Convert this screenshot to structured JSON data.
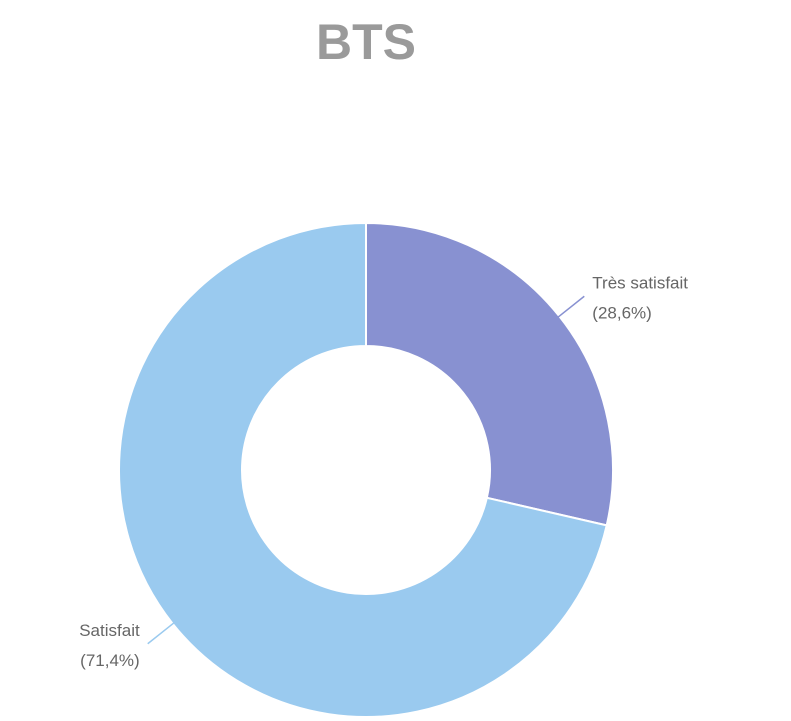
{
  "chart_data": {
    "type": "donut",
    "title": "BTS",
    "categories": [
      "Très satisfait",
      "Satisfait"
    ],
    "values": [
      28.6,
      71.4
    ],
    "value_labels": [
      "(28,6%)",
      "(71,4%)"
    ],
    "colors": [
      "#8891d1",
      "#9acaef"
    ]
  }
}
